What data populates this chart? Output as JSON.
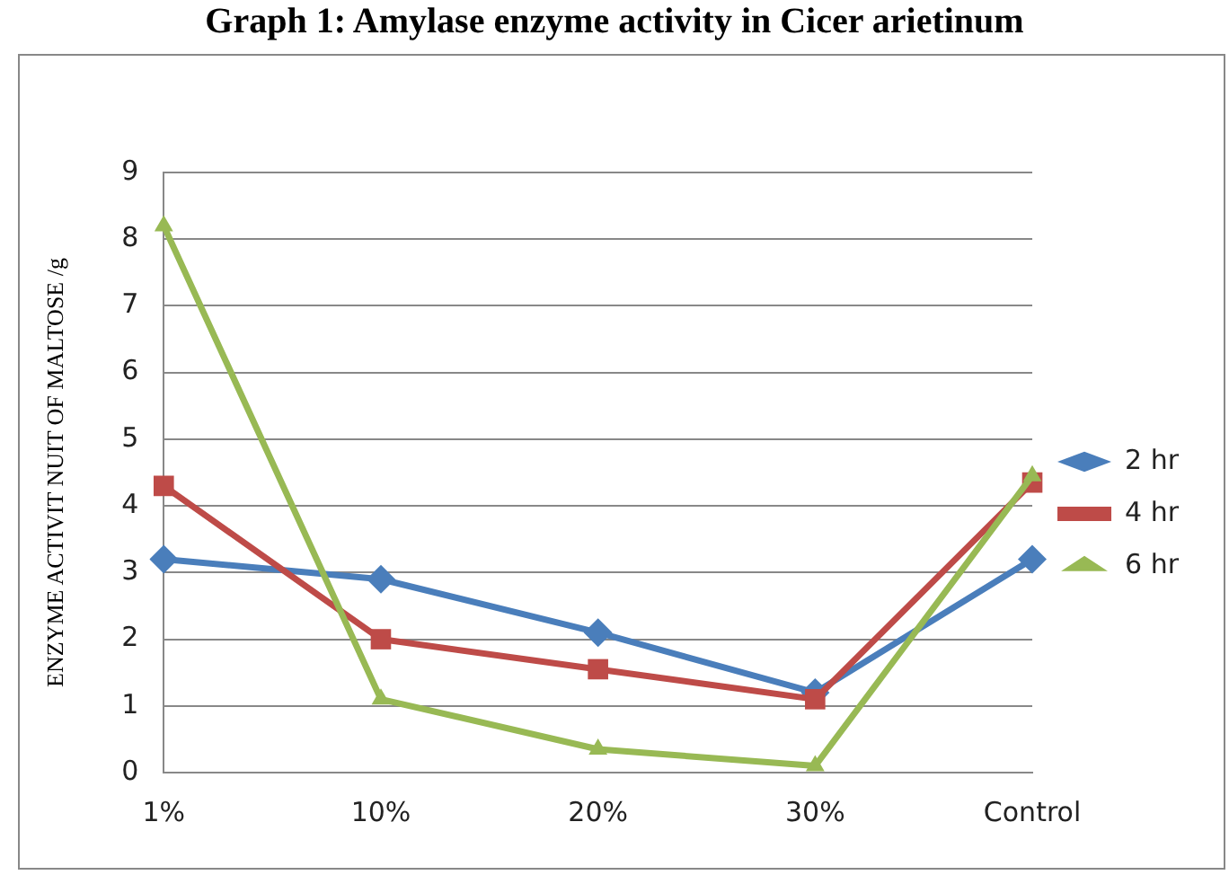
{
  "chart_data": {
    "type": "line",
    "title": "Graph 1: Amylase enzyme activity in Cicer arietinum",
    "ylabel": "ENZYME ACTIVIT NUIT OF MALTOSE /g",
    "categories": [
      "1%",
      "10%",
      "20%",
      "30%",
      "Control"
    ],
    "series": [
      {
        "name": "2 hr",
        "color": "#4a7ebb",
        "marker": "diamond",
        "values": [
          3.2,
          2.9,
          2.1,
          1.2,
          3.2
        ]
      },
      {
        "name": "4 hr",
        "color": "#be4b48",
        "marker": "square",
        "values": [
          4.3,
          2.0,
          1.55,
          1.1,
          4.35
        ]
      },
      {
        "name": "6 hr",
        "color": "#98b954",
        "marker": "triangle",
        "values": [
          8.2,
          1.1,
          0.35,
          0.1,
          4.45
        ]
      }
    ],
    "ylim": [
      0,
      9
    ],
    "yticks": [
      0,
      1,
      2,
      3,
      4,
      5,
      6,
      7,
      8,
      9
    ],
    "grid": "y",
    "legend": "right"
  }
}
